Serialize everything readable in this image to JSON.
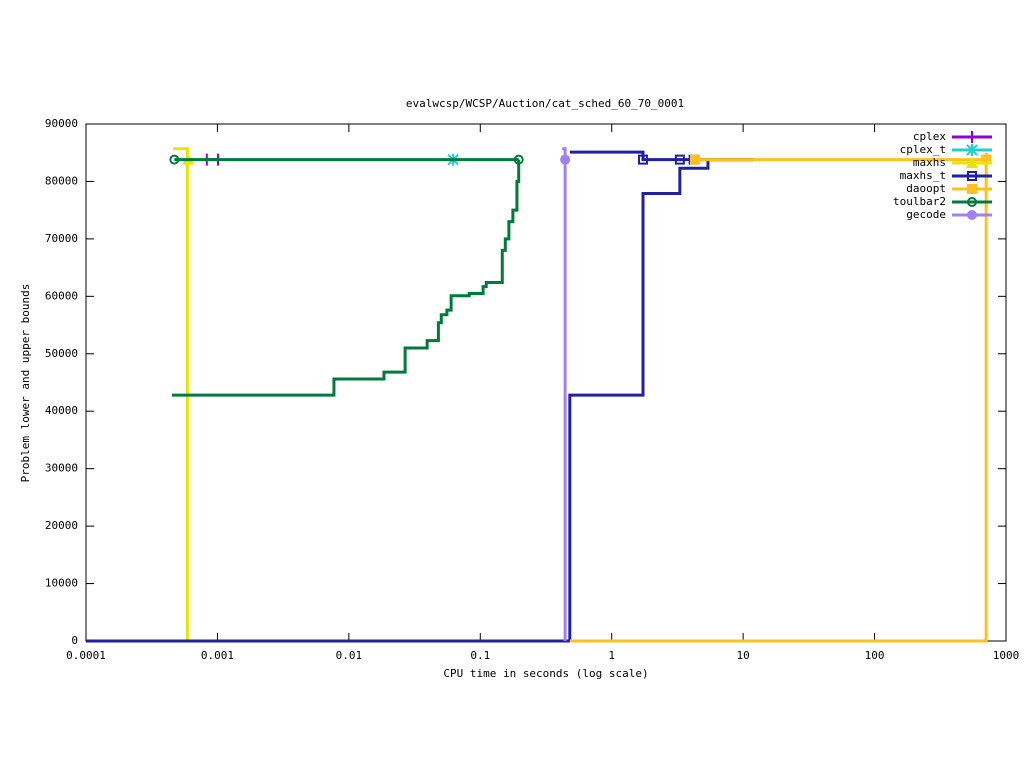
{
  "chart_data": {
    "type": "line",
    "title": "evalwcsp/WCSP/Auction/cat_sched_60_70_0001",
    "x_label": "CPU time in seconds (log scale)",
    "y_label": "Problem lower and upper bounds",
    "xscale": "log",
    "steps": true,
    "xlim": [
      0.0001,
      1000
    ],
    "ylim": [
      0,
      90000
    ],
    "xticks": [
      0.0001,
      0.001,
      0.01,
      0.1,
      1,
      10,
      100,
      1000
    ],
    "yticks": [
      0,
      10000,
      20000,
      30000,
      40000,
      50000,
      60000,
      70000,
      80000,
      90000
    ],
    "legend": "top-right",
    "series": [
      {
        "name": "cplex",
        "color": "#9400d3",
        "marker": "plus",
        "lines": [
          {
            "x": [
              0.00083,
              0.00101
            ],
            "values": [
              83800,
              83800
            ]
          }
        ],
        "points": {
          "x": [
            0.00083,
            0.00101
          ],
          "values": [
            83800,
            83800
          ]
        }
      },
      {
        "name": "cplex_t",
        "color": "#20d0d0",
        "marker": "cross",
        "lines": [],
        "points": {
          "x": [
            0.0621
          ],
          "values": [
            83800
          ]
        }
      },
      {
        "name": "maxhs",
        "color": "#e6e600",
        "marker": "triangle",
        "lines": [
          {
            "x": [
              0.00046,
              0.00059,
              0.00059
            ],
            "values": [
              85700,
              85700,
              0
            ]
          }
        ],
        "points": {
          "x": [
            0.0006
          ],
          "values": [
            83800
          ]
        }
      },
      {
        "name": "maxhs_t",
        "color": "#2020a0",
        "marker": "open-square",
        "lines": [
          {
            "x": [
              0.0001,
              0.48,
              1.73,
              3.3,
              5.4,
              11.9
            ],
            "values": [
              0,
              42800,
              77900,
              82300,
              83800,
              83800
            ]
          },
          {
            "x": [
              0.48,
              1.73,
              11.9
            ],
            "values": [
              85100,
              83800,
              83800
            ]
          }
        ],
        "points": {
          "x": [
            1.73,
            3.3,
            4.2
          ],
          "values": [
            83800,
            83800,
            83800
          ]
        }
      },
      {
        "name": "daoopt",
        "color": "#ffc020",
        "marker": "square",
        "lines": [
          {
            "x": [
              0.48,
              706,
              706
            ],
            "values": [
              0,
              0,
              85000
            ]
          },
          {
            "x": [
              4.3,
              706
            ],
            "values": [
              83800,
              83800
            ]
          }
        ],
        "points": {
          "x": [
            4.3,
            706
          ],
          "values": [
            83800,
            83800
          ]
        }
      },
      {
        "name": "toulbar2",
        "color": "#007a3d",
        "marker": "open-circle",
        "lines": [
          {
            "x": [
              0.000451,
              0.0077,
              0.0185,
              0.0268,
              0.0394,
              0.048,
              0.0505,
              0.0557,
              0.06,
              0.0823,
              0.105,
              0.111,
              0.147,
              0.155,
              0.165,
              0.177,
              0.19,
              0.196
            ],
            "values": [
              42800,
              45600,
              46800,
              51000,
              52300,
              55400,
              56800,
              57600,
              60100,
              60500,
              61700,
              62400,
              68000,
              70000,
              73000,
              75000,
              80000,
              83800
            ]
          },
          {
            "x": [
              0.00047,
              0.196
            ],
            "values": [
              83800,
              83800
            ]
          }
        ],
        "points": {
          "x": [
            0.00047,
            0.196
          ],
          "values": [
            83800,
            83800
          ]
        }
      },
      {
        "name": "gecode",
        "color": "#a080f0",
        "marker": "circle",
        "lines": [
          {
            "x": [
              0.42,
              0.442,
              0.442
            ],
            "values": [
              85700,
              85700,
              0
            ]
          }
        ],
        "points": {
          "x": [
            0.442
          ],
          "values": [
            83800
          ]
        }
      }
    ]
  }
}
